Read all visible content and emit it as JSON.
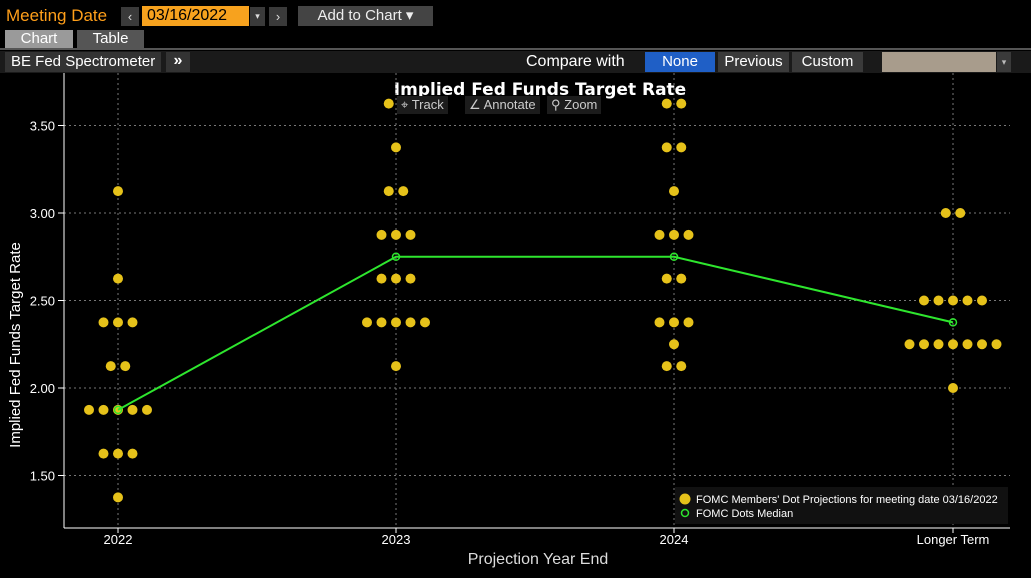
{
  "topbar": {
    "meeting_date_label": "Meeting Date",
    "prev_icon": "chevron-left-icon",
    "prev_glyph": "‹",
    "date_value": "03/16/2022",
    "date_drop_glyph": "▾",
    "next_icon": "chevron-right-icon",
    "next_glyph": "›",
    "add_to_chart_label": "Add to Chart ▾"
  },
  "tabs": [
    {
      "label": "Chart",
      "active": true
    },
    {
      "label": "Table",
      "active": false
    }
  ],
  "toolbar": {
    "function_name": "BE Fed Spectrometer",
    "expand_glyph": "»",
    "compare_label": "Compare with",
    "compare_options": [
      "None",
      "Previous",
      "Custom"
    ],
    "compare_selected": "None",
    "custom_select_arrow": "▾"
  },
  "chart_tools": [
    {
      "label": "Track",
      "icon": "crosshair-icon",
      "glyph": "⌖"
    },
    {
      "label": "Annotate",
      "icon": "pencil-icon",
      "glyph": "∠"
    },
    {
      "label": "Zoom",
      "icon": "magnifier-icon",
      "glyph": "⚲"
    }
  ],
  "colors": {
    "dots": "#e6c21a",
    "median": "#2ee62e",
    "accent": "#f7a21e",
    "selected": "#1f5fc6"
  },
  "chart_data": {
    "type": "scatter",
    "title": "Implied Fed Funds Target Rate",
    "ylabel": "Implied Fed Funds Target Rate",
    "xlabel": "Projection Year End",
    "categories": [
      "2022",
      "2023",
      "2024",
      "Longer Term"
    ],
    "ylim": [
      1.2,
      3.8
    ],
    "yticks": [
      1.5,
      2.0,
      2.5,
      3.0,
      3.5
    ],
    "ytick_labels": [
      "1.50",
      "2.00",
      "2.50",
      "3.00",
      "3.50"
    ],
    "grid": true,
    "legend_position": "bottom-right",
    "series": [
      {
        "name": "FOMC Members' Dot Projections for meeting date 03/16/2022",
        "kind": "dots",
        "values": [
          [
            1.375,
            1.625,
            1.625,
            1.625,
            1.875,
            1.875,
            1.875,
            1.875,
            1.875,
            2.125,
            2.125,
            2.375,
            2.375,
            2.375,
            2.625,
            3.125
          ],
          [
            2.125,
            2.375,
            2.375,
            2.375,
            2.375,
            2.375,
            2.625,
            2.625,
            2.625,
            2.875,
            2.875,
            2.875,
            3.125,
            3.125,
            3.375,
            3.625,
            3.625
          ],
          [
            2.125,
            2.125,
            2.25,
            2.375,
            2.375,
            2.375,
            2.625,
            2.625,
            2.875,
            2.875,
            2.875,
            3.125,
            3.375,
            3.375,
            3.625,
            3.625
          ],
          [
            2.0,
            2.25,
            2.25,
            2.25,
            2.25,
            2.25,
            2.25,
            2.25,
            2.5,
            2.5,
            2.5,
            2.5,
            2.5,
            3.0,
            3.0
          ]
        ]
      },
      {
        "name": "FOMC Dots Median",
        "kind": "median-line",
        "values": [
          1.875,
          2.75,
          2.75,
          2.375
        ]
      }
    ]
  }
}
